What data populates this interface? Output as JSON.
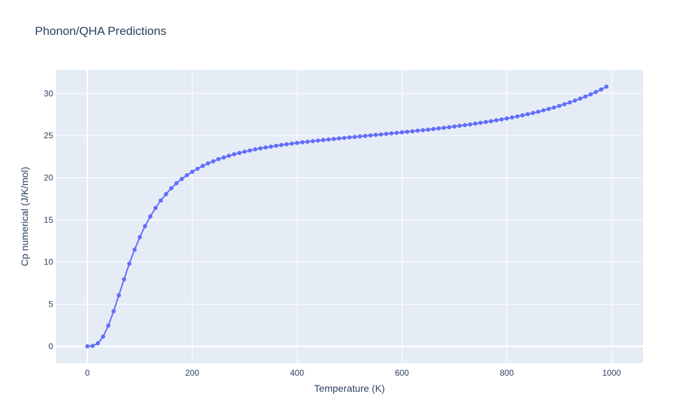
{
  "chart_data": {
    "type": "scatter",
    "mode": "lines+markers",
    "title": "Phonon/QHA Predictions",
    "xlabel": "Temperature (K)",
    "ylabel": "Cp numerical (J/K/mol)",
    "xlim": [
      -60,
      1060
    ],
    "ylim": [
      -2,
      32.8
    ],
    "xticks": [
      0,
      200,
      400,
      600,
      800,
      1000
    ],
    "yticks": [
      0,
      5,
      10,
      15,
      20,
      25,
      30
    ],
    "grid": true,
    "legend": "none",
    "series": [
      {
        "color": "#636efa",
        "x": [
          0,
          10,
          20,
          30,
          40,
          50,
          60,
          70,
          80,
          90,
          100,
          110,
          120,
          130,
          140,
          150,
          160,
          170,
          180,
          190,
          200,
          210,
          220,
          230,
          240,
          250,
          260,
          270,
          280,
          290,
          300,
          310,
          320,
          330,
          340,
          350,
          360,
          370,
          380,
          390,
          400,
          410,
          420,
          430,
          440,
          450,
          460,
          470,
          480,
          490,
          500,
          510,
          520,
          530,
          540,
          550,
          560,
          570,
          580,
          590,
          600,
          610,
          620,
          630,
          640,
          650,
          660,
          670,
          680,
          690,
          700,
          710,
          720,
          730,
          740,
          750,
          760,
          770,
          780,
          790,
          800,
          810,
          820,
          830,
          840,
          850,
          860,
          870,
          880,
          890,
          900,
          910,
          920,
          930,
          940,
          950,
          960,
          970,
          980,
          990
        ],
        "y": [
          0,
          0.05,
          0.35,
          1.15,
          2.45,
          4.15,
          6.05,
          7.95,
          9.8,
          11.45,
          12.95,
          14.25,
          15.4,
          16.4,
          17.3,
          18.05,
          18.75,
          19.35,
          19.85,
          20.3,
          20.7,
          21.05,
          21.4,
          21.7,
          21.95,
          22.2,
          22.4,
          22.6,
          22.78,
          22.94,
          23.1,
          23.23,
          23.36,
          23.48,
          23.59,
          23.69,
          23.79,
          23.88,
          23.97,
          24.05,
          24.13,
          24.2,
          24.27,
          24.34,
          24.41,
          24.47,
          24.53,
          24.6,
          24.66,
          24.72,
          24.78,
          24.84,
          24.9,
          24.96,
          25.02,
          25.08,
          25.14,
          25.2,
          25.26,
          25.32,
          25.38,
          25.45,
          25.51,
          25.58,
          25.64,
          25.71,
          25.78,
          25.85,
          25.92,
          26,
          26.08,
          26.16,
          26.24,
          26.33,
          26.42,
          26.51,
          26.61,
          26.71,
          26.81,
          26.92,
          27.03,
          27.15,
          27.27,
          27.4,
          27.54,
          27.68,
          27.83,
          27.99,
          28.16,
          28.33,
          28.52,
          28.72,
          28.93,
          29.15,
          29.38,
          29.63,
          29.89,
          30.17,
          30.47,
          30.8
        ]
      }
    ]
  }
}
